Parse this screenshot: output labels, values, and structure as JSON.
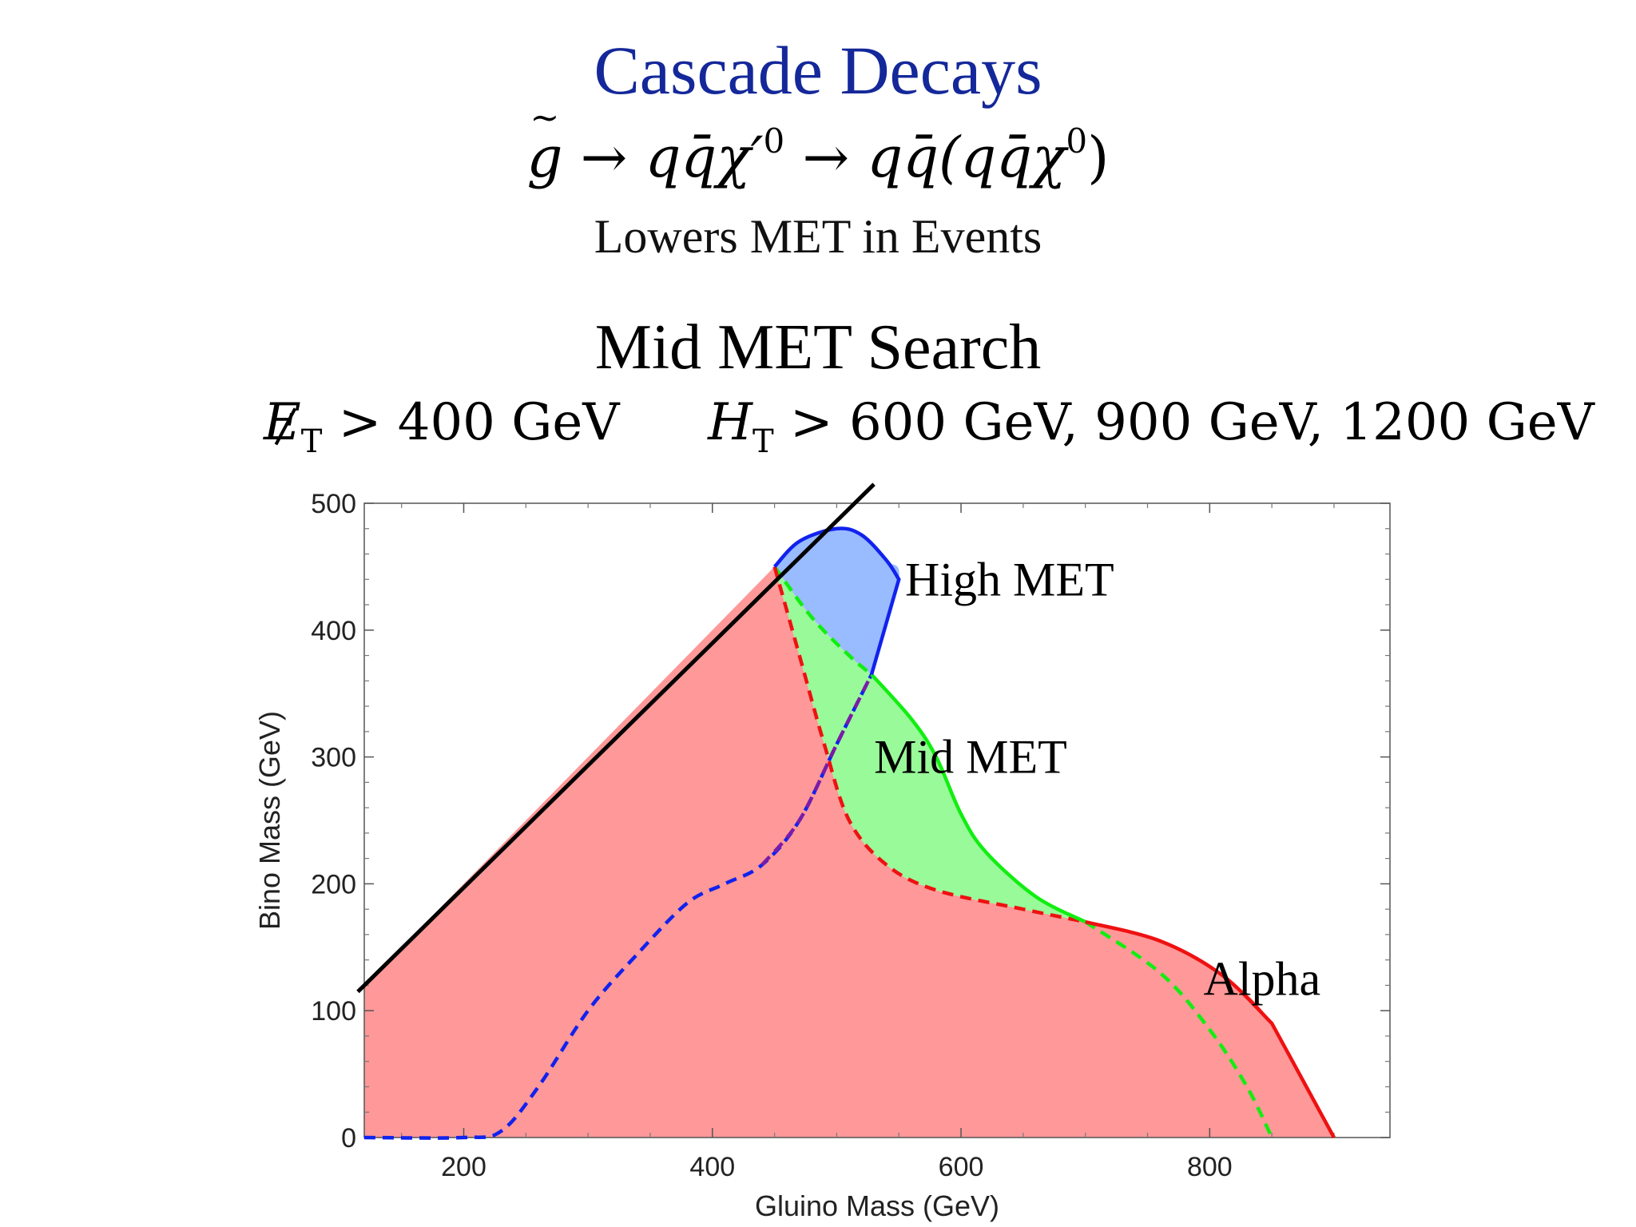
{
  "slide": {
    "title": "Cascade Decays",
    "subtitle": "Lowers MET in Events",
    "search_title": "Mid MET Search"
  },
  "decay_formula": {
    "lhs": "g",
    "rhs1": "qq̄χ′",
    "rhs1_sup": "0",
    "rhs2": "qq̄(qq̄χ",
    "rhs2_sup": "0",
    "rhs2_end": ")"
  },
  "cuts": {
    "met_symbol": "E",
    "met_sub": "T",
    "met_value": "> 400 GeV",
    "ht_symbol": "H",
    "ht_sub": "T",
    "ht_value": "> 600 GeV, 900 GeV, 1200 GeV"
  },
  "colors": {
    "title": "#14289a",
    "alpha_fill": "#ff9898",
    "alpha_line": "#ee1111",
    "mid_fill": "#99fa99",
    "mid_line": "#11ee11",
    "high_fill": "#99bbff",
    "high_line": "#1122ee"
  },
  "chart_data": {
    "type": "area",
    "xlabel": "Gluino Mass (GeV)",
    "ylabel": "Bino Mass (GeV)",
    "xlim": [
      120,
      945
    ],
    "ylim": [
      0,
      500
    ],
    "xticks": [
      200,
      400,
      600,
      800
    ],
    "yticks": [
      0,
      100,
      200,
      300,
      400,
      500
    ],
    "kinematic_line": [
      [
        120,
        120
      ],
      [
        530,
        515
      ]
    ],
    "regions": [
      {
        "name": "Alpha",
        "fill": "#ff9898",
        "line": "#ee1111",
        "solid": [
          [
            700,
            170
          ],
          [
            760,
            155
          ],
          [
            810,
            128
          ],
          [
            850,
            90
          ],
          [
            900,
            0
          ]
        ],
        "dashed": [
          [
            450,
            450
          ],
          [
            470,
            380
          ],
          [
            490,
            310
          ],
          [
            510,
            250
          ],
          [
            540,
            215
          ],
          [
            580,
            195
          ],
          [
            650,
            180
          ],
          [
            700,
            170
          ]
        ]
      },
      {
        "name": "Mid MET",
        "fill": "#99fa99",
        "line": "#11ee11",
        "solid": [
          [
            528,
            365
          ],
          [
            560,
            330
          ],
          [
            580,
            300
          ],
          [
            600,
            255
          ],
          [
            620,
            225
          ],
          [
            660,
            190
          ],
          [
            700,
            170
          ]
        ],
        "dashed": [
          [
            450,
            450
          ],
          [
            480,
            410
          ],
          [
            510,
            380
          ],
          [
            528,
            365
          ],
          [
            700,
            170
          ],
          [
            760,
            130
          ],
          [
            800,
            85
          ],
          [
            830,
            40
          ],
          [
            850,
            0
          ]
        ]
      },
      {
        "name": "High MET",
        "fill": "#99bbff",
        "line": "#1122ee",
        "solid": [
          [
            450,
            450
          ],
          [
            470,
            470
          ],
          [
            500,
            480
          ],
          [
            520,
            475
          ],
          [
            540,
            455
          ],
          [
            550,
            440
          ],
          [
            528,
            365
          ]
        ],
        "dashed": [
          [
            120,
            0
          ],
          [
            200,
            0
          ],
          [
            230,
            5
          ],
          [
            260,
            40
          ],
          [
            300,
            100
          ],
          [
            340,
            145
          ],
          [
            380,
            185
          ],
          [
            410,
            200
          ],
          [
            440,
            215
          ],
          [
            470,
            250
          ],
          [
            500,
            310
          ],
          [
            528,
            365
          ]
        ]
      }
    ],
    "labels": [
      {
        "text": "High MET",
        "x": 555,
        "y": 440
      },
      {
        "text": "Mid MET",
        "x": 530,
        "y": 300
      },
      {
        "text": "Alpha",
        "x": 795,
        "y": 125
      }
    ]
  }
}
